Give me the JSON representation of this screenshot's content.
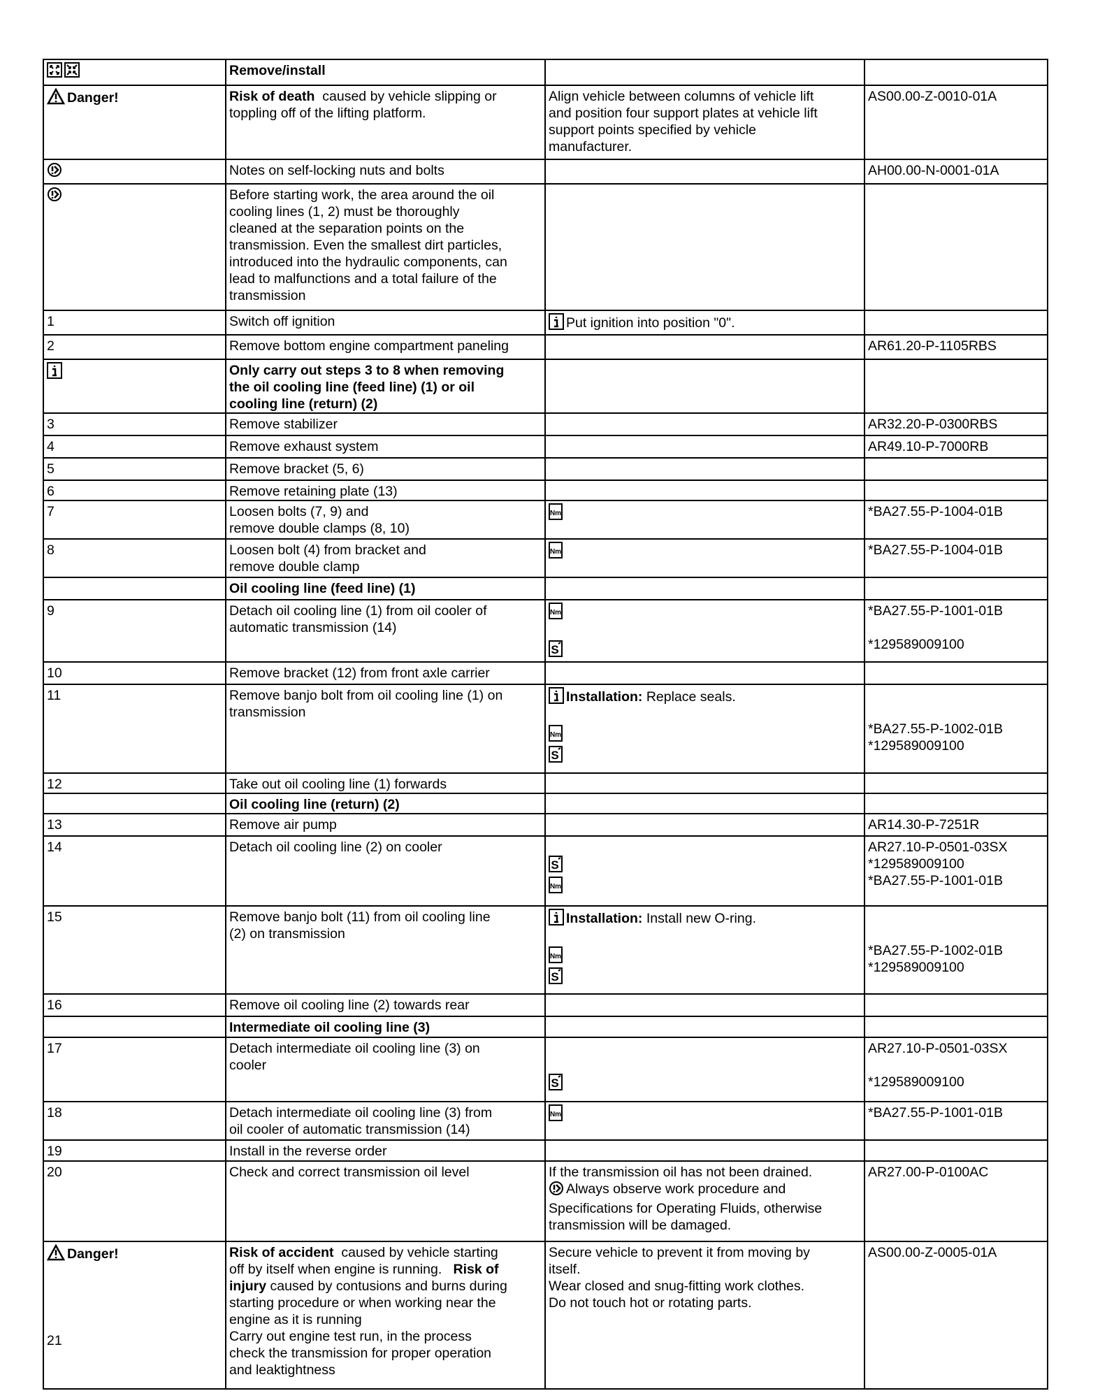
{
  "rows": [
    {
      "c1": [
        [
          {
            "icon": "remove"
          },
          {
            "icon": "install"
          }
        ]
      ],
      "c2": [
        [
          {
            "t": "Remove/install",
            "b": 1
          }
        ]
      ],
      "c3": [],
      "c4": []
    },
    {
      "c1": [
        [
          {
            "icon": "warning"
          },
          {
            "t": "Danger!",
            "b": 1
          }
        ]
      ],
      "c2": [
        [
          {
            "t": "Risk of death",
            "b": 1
          },
          {
            "t": "  caused by vehicle slipping or"
          }
        ],
        "toppling off of the lifting platform."
      ],
      "c3": [
        "Align vehicle between columns of vehicle lift",
        "and position four support plates  at vehicle lift",
        "support points specified by vehicle",
        "manufacturer."
      ],
      "c4": [
        "AS00.00-Z-0010-01A"
      ]
    },
    {
      "c1": [
        [
          {
            "icon": "note"
          }
        ]
      ],
      "c2": [
        "Notes on self-locking nuts and bolts"
      ],
      "c3": [],
      "c4": [
        "AH00.00-N-0001-01A"
      ]
    },
    {
      "c1": [
        [
          {
            "icon": "note"
          }
        ]
      ],
      "c2": [
        "Before starting work, the area around the oil",
        "cooling lines (1, 2) must be thoroughly",
        "cleaned at the separation points on the",
        "transmission. Even the smallest dirt particles,",
        "introduced into the hydraulic components, can",
        "lead to malfunctions and a total failure of the",
        "transmission"
      ],
      "c3": [],
      "c4": []
    },
    {
      "c1": [
        "1"
      ],
      "c2": [
        "Switch off ignition"
      ],
      "c3": [
        [
          {
            "icon": "info"
          },
          {
            "t": "Put ignition into position \"0\"."
          }
        ]
      ],
      "c4": []
    },
    {
      "c1": [
        "2"
      ],
      "c2": [
        "Remove bottom engine compartment paneling"
      ],
      "c3": [],
      "c4": [
        "AR61.20-P-1105RBS"
      ]
    },
    {
      "c1": [
        [
          {
            "icon": "info"
          }
        ]
      ],
      "c2": [
        [
          {
            "t": "Only carry out steps 3 to 8 when removing",
            "b": 1
          }
        ],
        [
          {
            "t": "the oil cooling line (feed line) (1) or oil",
            "b": 1
          }
        ],
        [
          {
            "t": "cooling line (return) (2)",
            "b": 1
          }
        ]
      ],
      "c3": [],
      "c4": []
    },
    {
      "c1": [
        "3"
      ],
      "c2": [
        "Remove stabilizer"
      ],
      "c3": [],
      "c4": [
        "AR32.20-P-0300RBS"
      ]
    },
    {
      "c1": [
        "4"
      ],
      "c2": [
        "Remove exhaust system"
      ],
      "c3": [],
      "c4": [
        "AR49.10-P-7000RB"
      ]
    },
    {
      "c1": [
        "5"
      ],
      "c2": [
        "Remove bracket (5, 6)"
      ],
      "c3": [],
      "c4": []
    },
    {
      "c1": [
        "6"
      ],
      "c2": [
        "Remove retaining plate (13)"
      ],
      "c3": [],
      "c4": []
    },
    {
      "c1": [
        "7"
      ],
      "c2": [
        "Loosen bolts (7, 9) and",
        "remove double clamps (8, 10)"
      ],
      "c3": [
        [
          {
            "icon": "torque"
          }
        ]
      ],
      "c4": [
        "*BA27.55-P-1004-01B"
      ]
    },
    {
      "c1": [
        "8"
      ],
      "c2": [
        "Loosen bolt (4) from bracket and",
        "remove double clamp"
      ],
      "c3": [
        [
          {
            "icon": "torque"
          }
        ]
      ],
      "c4": [
        "*BA27.55-P-1004-01B"
      ]
    },
    {
      "c1": [],
      "c2": [
        [
          {
            "t": "Oil cooling line (feed line) (1)",
            "b": 1
          }
        ]
      ],
      "c3": [],
      "c4": []
    },
    {
      "c1": [
        "9"
      ],
      "c2": [
        "Detach oil cooling line (1) from oil cooler of",
        "automatic transmission (14)"
      ],
      "c3": [
        [
          {
            "icon": "torque"
          }
        ],
        "",
        [
          {
            "icon": "tool"
          }
        ]
      ],
      "c4": [
        "*BA27.55-P-1001-01B",
        "",
        "*129589009100"
      ]
    },
    {
      "c1": [
        "10"
      ],
      "c2": [
        "Remove bracket (12) from front axle carrier"
      ],
      "c3": [],
      "c4": []
    },
    {
      "c1": [
        "11"
      ],
      "c2": [
        "Remove banjo bolt from oil cooling line (1) on",
        "transmission"
      ],
      "c3": [
        [
          {
            "icon": "info"
          },
          {
            "t": "Installation:",
            "b": 1
          },
          {
            "t": " Replace seals."
          }
        ],
        "",
        [
          {
            "icon": "torque"
          }
        ],
        [
          {
            "icon": "tool"
          }
        ]
      ],
      "c4": [
        "",
        "",
        "*BA27.55-P-1002-01B",
        "*129589009100"
      ]
    },
    {
      "c1": [
        "12"
      ],
      "c2": [
        "Take out oil cooling line (1) forwards"
      ],
      "c3": [],
      "c4": []
    },
    {
      "c1": [],
      "c2": [
        [
          {
            "t": "Oil cooling line (return) (2)",
            "b": 1
          }
        ]
      ],
      "c3": [],
      "c4": []
    },
    {
      "c1": [
        "13"
      ],
      "c2": [
        "Remove air pump"
      ],
      "c3": [],
      "c4": [
        "AR14.30-P-7251R"
      ]
    },
    {
      "c1": [
        "14"
      ],
      "c2": [
        "Detach oil cooling line (2) on cooler"
      ],
      "c3": [
        "",
        [
          {
            "icon": "tool"
          }
        ],
        [
          {
            "icon": "torque"
          }
        ]
      ],
      "c4": [
        "AR27.10-P-0501-03SX",
        "*129589009100",
        "*BA27.55-P-1001-01B"
      ]
    },
    {
      "c1": [
        "15"
      ],
      "c2": [
        "Remove banjo bolt (11) from oil cooling line",
        "(2) on transmission"
      ],
      "c3": [
        [
          {
            "icon": "info"
          },
          {
            "t": "Installation:",
            "b": 1
          },
          {
            "t": " Install new O-ring."
          }
        ],
        "",
        [
          {
            "icon": "torque"
          }
        ],
        [
          {
            "icon": "tool"
          }
        ]
      ],
      "c4": [
        "",
        "",
        "*BA27.55-P-1002-01B",
        "*129589009100"
      ]
    },
    {
      "c1": [
        "16"
      ],
      "c2": [
        "Remove oil cooling line (2) towards rear"
      ],
      "c3": [],
      "c4": []
    },
    {
      "c1": [],
      "c2": [
        [
          {
            "t": "Intermediate oil cooling line (3)",
            "b": 1
          }
        ]
      ],
      "c3": [],
      "c4": []
    },
    {
      "c1": [
        "17"
      ],
      "c2": [
        "Detach intermediate oil cooling line (3) on",
        "cooler"
      ],
      "c3": [
        "",
        "",
        [
          {
            "icon": "tool"
          }
        ]
      ],
      "c4": [
        "AR27.10-P-0501-03SX",
        "",
        "*129589009100"
      ]
    },
    {
      "c1": [
        "18"
      ],
      "c2": [
        "Detach intermediate oil cooling line (3) from",
        "oil cooler of automatic transmission (14)"
      ],
      "c3": [
        [
          {
            "icon": "torque"
          }
        ]
      ],
      "c4": [
        "*BA27.55-P-1001-01B"
      ]
    },
    {
      "c1": [
        "19"
      ],
      "c2": [
        "Install in the reverse order"
      ],
      "c3": [],
      "c4": []
    },
    {
      "c1": [
        "20"
      ],
      "c2": [
        "Check and correct transmission oil level"
      ],
      "c3": [
        "If the transmission oil has not been drained.",
        [
          {
            "icon": "note"
          },
          {
            "t": "Always observe work procedure and"
          }
        ],
        "Specifications for Operating Fluids, otherwise",
        "transmission will be damaged."
      ],
      "c4": [
        "AR27.00-P-0100AC"
      ]
    },
    {
      "c1": [
        [
          {
            "icon": "warning"
          },
          {
            "t": "Danger!",
            "b": 1
          }
        ],
        "",
        "",
        "",
        "",
        "21"
      ],
      "c2": [
        [
          {
            "t": "Risk of accident",
            "b": 1
          },
          {
            "t": "  caused by vehicle starting"
          }
        ],
        [
          {
            "t": "off by itself when engine is running.   "
          },
          {
            "t": "Risk of",
            "b": 1
          }
        ],
        [
          {
            "t": "injury",
            "b": 1
          },
          {
            "t": " caused by contusions and burns during"
          }
        ],
        "starting procedure or when working near the",
        "engine as it is running",
        "Carry out engine test run, in the process",
        "check the transmission for proper operation",
        "and leaktightness"
      ],
      "c3": [
        "Secure vehicle to prevent it from moving by",
        "itself.",
        "Wear closed and snug-fitting work clothes.",
        "Do not touch hot or rotating parts."
      ],
      "c4": [
        "AS00.00-Z-0005-01A"
      ]
    }
  ]
}
